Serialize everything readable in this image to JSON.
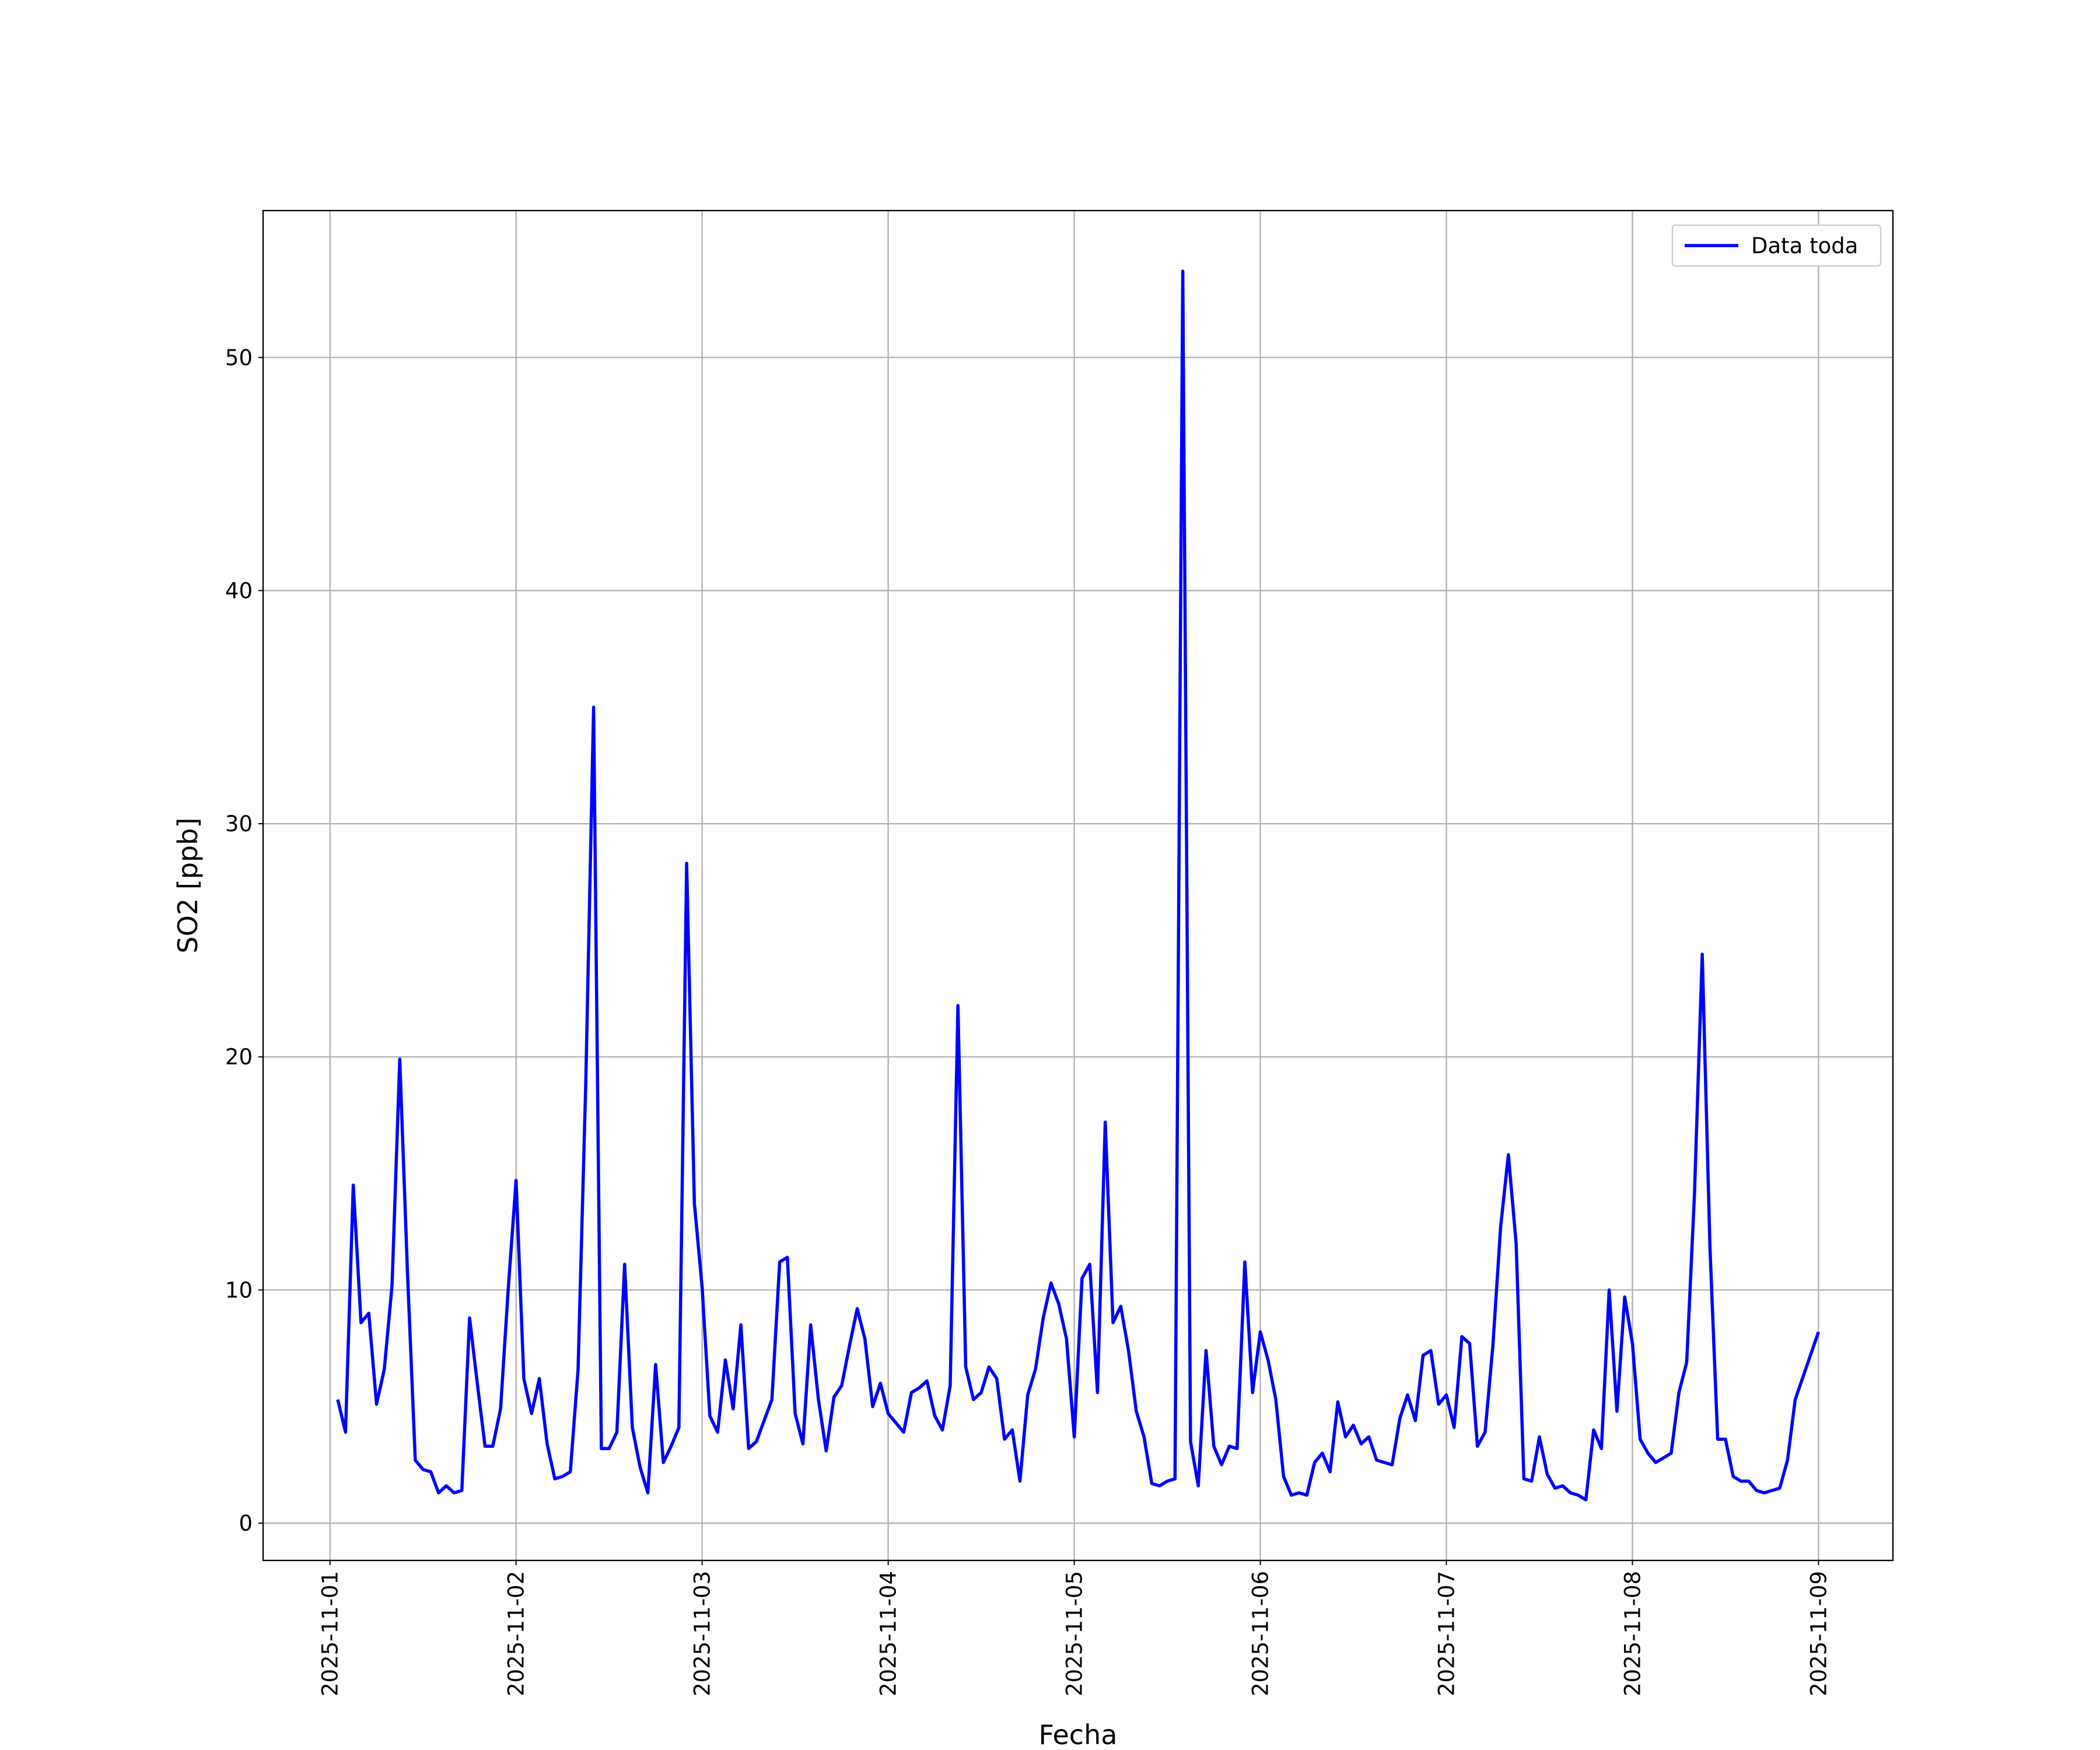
{
  "chart_data": {
    "type": "line",
    "xlabel": "Fecha",
    "ylabel": "SO2 [ppb]",
    "legend": "upper right",
    "grid": true,
    "xlim": [
      "2025-10-31T15:22",
      "2025-11-09T09:36"
    ],
    "ylim": [
      -1.6,
      56.3
    ],
    "xticks": [
      "2025-11-01",
      "2025-11-02",
      "2025-11-03",
      "2025-11-04",
      "2025-11-05",
      "2025-11-06",
      "2025-11-07",
      "2025-11-08",
      "2025-11-09"
    ],
    "yticks": [
      0,
      10,
      20,
      30,
      40,
      50
    ],
    "x": [
      "2025-11-01T01:00",
      "2025-11-01T02:00",
      "2025-11-01T03:00",
      "2025-11-01T04:00",
      "2025-11-01T05:00",
      "2025-11-01T06:00",
      "2025-11-01T07:00",
      "2025-11-01T08:00",
      "2025-11-01T09:00",
      "2025-11-01T10:00",
      "2025-11-01T11:00",
      "2025-11-01T12:00",
      "2025-11-01T13:00",
      "2025-11-01T14:00",
      "2025-11-01T15:00",
      "2025-11-01T16:00",
      "2025-11-01T17:00",
      "2025-11-01T18:00",
      "2025-11-01T19:00",
      "2025-11-01T20:00",
      "2025-11-01T21:00",
      "2025-11-01T22:00",
      "2025-11-01T23:00",
      "2025-11-02T00:00",
      "2025-11-02T01:00",
      "2025-11-02T02:00",
      "2025-11-02T03:00",
      "2025-11-02T04:00",
      "2025-11-02T05:00",
      "2025-11-02T06:00",
      "2025-11-02T07:00",
      "2025-11-02T08:00",
      "2025-11-02T09:00",
      "2025-11-02T10:00",
      "2025-11-02T11:00",
      "2025-11-02T12:00",
      "2025-11-02T13:00",
      "2025-11-02T14:00",
      "2025-11-02T15:00",
      "2025-11-02T16:00",
      "2025-11-02T17:00",
      "2025-11-02T18:00",
      "2025-11-02T19:00",
      "2025-11-02T20:00",
      "2025-11-02T21:00",
      "2025-11-02T22:00",
      "2025-11-02T23:00",
      "2025-11-03T00:00",
      "2025-11-03T01:00",
      "2025-11-03T02:00",
      "2025-11-03T03:00",
      "2025-11-03T04:00",
      "2025-11-03T05:00",
      "2025-11-03T06:00",
      "2025-11-03T07:00",
      "2025-11-03T08:00",
      "2025-11-03T09:00",
      "2025-11-03T10:00",
      "2025-11-03T11:00",
      "2025-11-03T12:00",
      "2025-11-03T13:00",
      "2025-11-03T14:00",
      "2025-11-03T15:00",
      "2025-11-03T16:00",
      "2025-11-03T17:00",
      "2025-11-03T18:00",
      "2025-11-03T19:00",
      "2025-11-03T20:00",
      "2025-11-03T21:00",
      "2025-11-03T22:00",
      "2025-11-03T23:00",
      "2025-11-04T00:00",
      "2025-11-04T01:00",
      "2025-11-04T02:00",
      "2025-11-04T03:00",
      "2025-11-04T04:00",
      "2025-11-04T05:00",
      "2025-11-04T06:00",
      "2025-11-04T07:00",
      "2025-11-04T08:00",
      "2025-11-04T09:00",
      "2025-11-04T10:00",
      "2025-11-04T11:00",
      "2025-11-04T12:00",
      "2025-11-04T13:00",
      "2025-11-04T14:00",
      "2025-11-04T15:00",
      "2025-11-04T16:00",
      "2025-11-04T17:00",
      "2025-11-04T18:00",
      "2025-11-04T19:00",
      "2025-11-04T20:00",
      "2025-11-04T21:00",
      "2025-11-04T22:00",
      "2025-11-04T23:00",
      "2025-11-05T00:00",
      "2025-11-05T01:00",
      "2025-11-05T02:00",
      "2025-11-05T03:00",
      "2025-11-05T04:00",
      "2025-11-05T05:00",
      "2025-11-05T06:00",
      "2025-11-05T07:00",
      "2025-11-05T08:00",
      "2025-11-05T09:00",
      "2025-11-05T10:00",
      "2025-11-05T11:00",
      "2025-11-05T12:00",
      "2025-11-05T13:00",
      "2025-11-05T14:00",
      "2025-11-05T15:00",
      "2025-11-05T16:00",
      "2025-11-05T17:00",
      "2025-11-05T18:00",
      "2025-11-05T19:00",
      "2025-11-05T20:00",
      "2025-11-05T21:00",
      "2025-11-05T22:00",
      "2025-11-05T23:00",
      "2025-11-06T00:00",
      "2025-11-06T01:00",
      "2025-11-06T02:00",
      "2025-11-06T03:00",
      "2025-11-06T04:00",
      "2025-11-06T05:00",
      "2025-11-06T06:00",
      "2025-11-06T07:00",
      "2025-11-06T08:00",
      "2025-11-06T09:00",
      "2025-11-06T10:00",
      "2025-11-06T11:00",
      "2025-11-06T12:00",
      "2025-11-06T13:00",
      "2025-11-06T14:00",
      "2025-11-06T15:00",
      "2025-11-06T16:00",
      "2025-11-06T17:00",
      "2025-11-06T18:00",
      "2025-11-06T19:00",
      "2025-11-06T20:00",
      "2025-11-06T21:00",
      "2025-11-06T22:00",
      "2025-11-06T23:00",
      "2025-11-07T00:00",
      "2025-11-07T01:00",
      "2025-11-07T02:00",
      "2025-11-07T03:00",
      "2025-11-07T04:00",
      "2025-11-07T05:00",
      "2025-11-07T06:00",
      "2025-11-07T07:00",
      "2025-11-07T08:00",
      "2025-11-07T09:00",
      "2025-11-07T10:00",
      "2025-11-07T11:00",
      "2025-11-07T12:00",
      "2025-11-07T13:00",
      "2025-11-07T14:00",
      "2025-11-07T15:00",
      "2025-11-07T16:00",
      "2025-11-07T17:00",
      "2025-11-07T18:00",
      "2025-11-07T19:00",
      "2025-11-07T20:00",
      "2025-11-07T21:00",
      "2025-11-07T22:00",
      "2025-11-07T23:00",
      "2025-11-08T00:00",
      "2025-11-08T01:00",
      "2025-11-08T02:00",
      "2025-11-08T03:00",
      "2025-11-08T04:00",
      "2025-11-08T05:00",
      "2025-11-08T06:00",
      "2025-11-08T07:00",
      "2025-11-08T08:00",
      "2025-11-08T09:00",
      "2025-11-08T10:00",
      "2025-11-08T11:00",
      "2025-11-08T12:00",
      "2025-11-08T13:00",
      "2025-11-08T14:00",
      "2025-11-08T15:00",
      "2025-11-08T16:00",
      "2025-11-08T17:00",
      "2025-11-08T18:00",
      "2025-11-08T19:00",
      "2025-11-08T20:00",
      "2025-11-08T21:00",
      "2025-11-09T00:00"
    ],
    "series": [
      {
        "name": "Data toda",
        "color": "#0000ff",
        "values": [
          5.3,
          3.9,
          14.5,
          8.6,
          9.0,
          5.1,
          6.6,
          10.2,
          19.9,
          10.7,
          2.7,
          2.3,
          2.2,
          1.3,
          1.6,
          1.3,
          1.4,
          8.8,
          6.0,
          3.3,
          3.3,
          4.9,
          10.1,
          14.7,
          6.2,
          4.7,
          6.2,
          3.4,
          1.9,
          2.0,
          2.2,
          6.6,
          19.0,
          35.0,
          3.2,
          3.2,
          3.9,
          11.1,
          4.1,
          2.4,
          1.3,
          6.8,
          2.6,
          3.3,
          4.1,
          28.3,
          13.7,
          10.1,
          4.6,
          3.9,
          7.0,
          4.9,
          8.5,
          3.2,
          3.5,
          4.4,
          5.3,
          11.2,
          11.4,
          4.7,
          3.4,
          8.5,
          5.3,
          3.1,
          5.4,
          5.9,
          7.6,
          9.2,
          7.9,
          5.0,
          6.0,
          4.7,
          4.3,
          3.9,
          5.6,
          5.8,
          6.1,
          4.6,
          4.0,
          5.9,
          22.2,
          6.7,
          5.3,
          5.6,
          6.7,
          6.2,
          3.6,
          4.0,
          1.8,
          5.5,
          6.6,
          8.8,
          10.3,
          9.4,
          7.9,
          3.7,
          10.5,
          11.1,
          5.6,
          17.2,
          8.6,
          9.3,
          7.4,
          4.8,
          3.7,
          1.7,
          1.6,
          1.8,
          1.9,
          53.7,
          3.5,
          1.6,
          7.4,
          3.3,
          2.5,
          3.3,
          3.2,
          11.2,
          5.6,
          8.2,
          7.0,
          5.3,
          2.0,
          1.2,
          1.3,
          1.2,
          2.6,
          3.0,
          2.2,
          5.2,
          3.7,
          4.2,
          3.4,
          3.7,
          2.7,
          2.6,
          2.5,
          4.5,
          5.5,
          4.4,
          7.2,
          7.4,
          5.1,
          5.5,
          4.1,
          8.0,
          7.7,
          3.3,
          3.9,
          7.6,
          12.7,
          15.8,
          12.0,
          1.9,
          1.8,
          3.7,
          2.1,
          1.5,
          1.6,
          1.3,
          1.2,
          1.0,
          4.0,
          3.2,
          10.0,
          4.8,
          9.7,
          7.7,
          3.6,
          3.0,
          2.6,
          2.8,
          3.0,
          5.6,
          6.9,
          14.1,
          24.4,
          11.8,
          3.6,
          3.6,
          2.0,
          1.8,
          1.8,
          1.4,
          1.3,
          1.4,
          1.5,
          2.7,
          5.3,
          8.2
        ]
      }
    ]
  }
}
